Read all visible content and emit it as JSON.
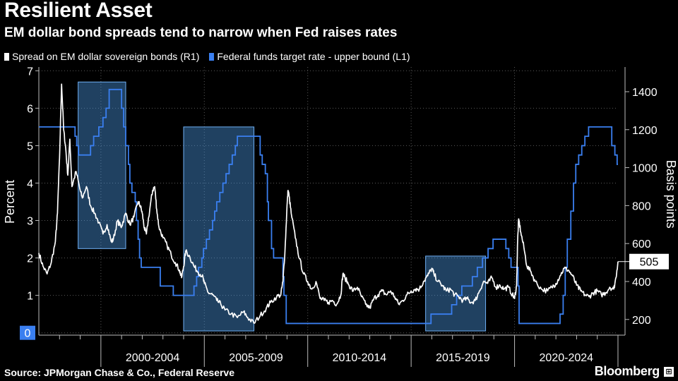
{
  "chart_data": {
    "type": "line",
    "title": "Resilient Asset",
    "subtitle": "EM dollar bond spreads tend to narrow when Fed raises rates",
    "source": "Source: JPMorgan Chase & Co., Federal Reserve",
    "brand": "Bloomberg",
    "xlim": [
      1997.0,
      2025.0
    ],
    "x_ticks": [
      "2000-2004",
      "2005-2009",
      "2010-2014",
      "2015-2019",
      "2020-2024"
    ],
    "left_axis": {
      "label": "Percent",
      "ylim": [
        -0.1,
        7.1
      ],
      "ticks": [
        "0",
        "1",
        "2",
        "3",
        "4",
        "5",
        "6",
        "7"
      ]
    },
    "right_axis": {
      "label": "Basis points",
      "ylim": [
        110,
        1530
      ],
      "ticks": [
        "200",
        "400",
        "600",
        "800",
        "1000",
        "1200",
        "1400"
      ]
    },
    "grid": true,
    "legend_position": "top-left",
    "colors": {
      "spread": "#ffffff",
      "fed": "#3a7ff0",
      "highlight": "#4c9ae8"
    },
    "series": [
      {
        "name": "Spread on EM dollar sovereign bonds (R1)",
        "axis": "right",
        "last_value_label": "505",
        "points": [
          [
            1997.0,
            550
          ],
          [
            1997.2,
            480
          ],
          [
            1997.4,
            440
          ],
          [
            1997.6,
            500
          ],
          [
            1997.8,
            610
          ],
          [
            1997.9,
            760
          ],
          [
            1998.0,
            1050
          ],
          [
            1998.1,
            1440
          ],
          [
            1998.2,
            1200
          ],
          [
            1998.3,
            1100
          ],
          [
            1998.4,
            960
          ],
          [
            1998.5,
            1150
          ],
          [
            1998.6,
            900
          ],
          [
            1998.8,
            980
          ],
          [
            1999.0,
            880
          ],
          [
            1999.1,
            840
          ],
          [
            1999.3,
            900
          ],
          [
            1999.5,
            800
          ],
          [
            1999.7,
            760
          ],
          [
            1999.9,
            710
          ],
          [
            2000.1,
            650
          ],
          [
            2000.3,
            700
          ],
          [
            2000.5,
            610
          ],
          [
            2000.6,
            620
          ],
          [
            2000.8,
            720
          ],
          [
            2000.9,
            700
          ],
          [
            2001.0,
            690
          ],
          [
            2001.2,
            760
          ],
          [
            2001.4,
            700
          ],
          [
            2001.6,
            740
          ],
          [
            2001.8,
            820
          ],
          [
            2001.9,
            800
          ],
          [
            2002.0,
            760
          ],
          [
            2002.1,
            680
          ],
          [
            2002.2,
            650
          ],
          [
            2002.4,
            810
          ],
          [
            2002.5,
            880
          ],
          [
            2002.6,
            900
          ],
          [
            2002.7,
            780
          ],
          [
            2002.8,
            690
          ],
          [
            2003.0,
            630
          ],
          [
            2003.2,
            590
          ],
          [
            2003.4,
            540
          ],
          [
            2003.6,
            500
          ],
          [
            2003.8,
            460
          ],
          [
            2003.9,
            420
          ],
          [
            2004.0,
            480
          ],
          [
            2004.1,
            560
          ],
          [
            2004.3,
            530
          ],
          [
            2004.5,
            480
          ],
          [
            2004.7,
            450
          ],
          [
            2004.9,
            430
          ],
          [
            2005.0,
            390
          ],
          [
            2005.2,
            340
          ],
          [
            2005.4,
            330
          ],
          [
            2005.6,
            300
          ],
          [
            2005.8,
            280
          ],
          [
            2006.0,
            250
          ],
          [
            2006.3,
            230
          ],
          [
            2006.6,
            210
          ],
          [
            2006.9,
            240
          ],
          [
            2007.1,
            210
          ],
          [
            2007.4,
            180
          ],
          [
            2007.7,
            220
          ],
          [
            2008.0,
            260
          ],
          [
            2008.2,
            290
          ],
          [
            2008.5,
            320
          ],
          [
            2008.7,
            330
          ],
          [
            2008.8,
            400
          ],
          [
            2008.9,
            560
          ],
          [
            2009.0,
            800
          ],
          [
            2009.05,
            880
          ],
          [
            2009.1,
            850
          ],
          [
            2009.2,
            760
          ],
          [
            2009.4,
            630
          ],
          [
            2009.6,
            520
          ],
          [
            2009.8,
            440
          ],
          [
            2010.0,
            400
          ],
          [
            2010.2,
            360
          ],
          [
            2010.4,
            400
          ],
          [
            2010.6,
            310
          ],
          [
            2010.8,
            300
          ],
          [
            2011.0,
            290
          ],
          [
            2011.2,
            300
          ],
          [
            2011.4,
            280
          ],
          [
            2011.6,
            330
          ],
          [
            2011.7,
            440
          ],
          [
            2011.8,
            420
          ],
          [
            2012.0,
            380
          ],
          [
            2012.2,
            350
          ],
          [
            2012.4,
            370
          ],
          [
            2012.6,
            320
          ],
          [
            2012.8,
            280
          ],
          [
            2013.0,
            260
          ],
          [
            2013.2,
            310
          ],
          [
            2013.4,
            330
          ],
          [
            2013.6,
            350
          ],
          [
            2013.8,
            330
          ],
          [
            2014.0,
            350
          ],
          [
            2014.2,
            320
          ],
          [
            2014.4,
            280
          ],
          [
            2014.6,
            300
          ],
          [
            2014.8,
            330
          ],
          [
            2015.0,
            350
          ],
          [
            2015.2,
            360
          ],
          [
            2015.4,
            360
          ],
          [
            2015.6,
            400
          ],
          [
            2015.8,
            430
          ],
          [
            2016.0,
            470
          ],
          [
            2016.1,
            440
          ],
          [
            2016.3,
            400
          ],
          [
            2016.5,
            380
          ],
          [
            2016.7,
            350
          ],
          [
            2016.9,
            360
          ],
          [
            2017.1,
            330
          ],
          [
            2017.3,
            320
          ],
          [
            2017.5,
            300
          ],
          [
            2017.7,
            310
          ],
          [
            2017.9,
            290
          ],
          [
            2018.1,
            300
          ],
          [
            2018.3,
            350
          ],
          [
            2018.5,
            400
          ],
          [
            2018.7,
            390
          ],
          [
            2018.9,
            420
          ],
          [
            2019.1,
            370
          ],
          [
            2019.3,
            380
          ],
          [
            2019.5,
            360
          ],
          [
            2019.7,
            370
          ],
          [
            2019.9,
            330
          ],
          [
            2020.0,
            310
          ],
          [
            2020.1,
            380
          ],
          [
            2020.15,
            620
          ],
          [
            2020.2,
            730
          ],
          [
            2020.3,
            660
          ],
          [
            2020.45,
            580
          ],
          [
            2020.6,
            480
          ],
          [
            2020.8,
            450
          ],
          [
            2021.0,
            400
          ],
          [
            2021.3,
            360
          ],
          [
            2021.6,
            350
          ],
          [
            2021.8,
            370
          ],
          [
            2022.0,
            390
          ],
          [
            2022.2,
            430
          ],
          [
            2022.4,
            470
          ],
          [
            2022.6,
            460
          ],
          [
            2022.8,
            430
          ],
          [
            2023.0,
            380
          ],
          [
            2023.2,
            350
          ],
          [
            2023.4,
            330
          ],
          [
            2023.6,
            320
          ],
          [
            2023.8,
            340
          ],
          [
            2024.0,
            350
          ],
          [
            2024.2,
            330
          ],
          [
            2024.4,
            340
          ],
          [
            2024.6,
            370
          ],
          [
            2024.8,
            360
          ],
          [
            2024.9,
            420
          ],
          [
            2025.0,
            505
          ]
        ]
      },
      {
        "name": "Federal funds target rate - upper bound  (L1)",
        "axis": "left",
        "points": [
          [
            1997.0,
            5.5
          ],
          [
            1998.75,
            5.25
          ],
          [
            1998.83,
            5.0
          ],
          [
            1998.92,
            4.75
          ],
          [
            1999.5,
            5.0
          ],
          [
            1999.65,
            5.25
          ],
          [
            1999.9,
            5.5
          ],
          [
            2000.1,
            5.75
          ],
          [
            2000.25,
            6.0
          ],
          [
            2000.4,
            6.5
          ],
          [
            2001.0,
            6.0
          ],
          [
            2001.1,
            5.5
          ],
          [
            2001.2,
            5.0
          ],
          [
            2001.33,
            4.5
          ],
          [
            2001.4,
            4.0
          ],
          [
            2001.5,
            3.75
          ],
          [
            2001.66,
            3.5
          ],
          [
            2001.72,
            3.0
          ],
          [
            2001.8,
            2.5
          ],
          [
            2001.87,
            2.0
          ],
          [
            2001.95,
            1.75
          ],
          [
            2002.87,
            1.25
          ],
          [
            2003.5,
            1.0
          ],
          [
            2004.5,
            1.25
          ],
          [
            2004.63,
            1.5
          ],
          [
            2004.72,
            1.75
          ],
          [
            2004.88,
            2.0
          ],
          [
            2004.96,
            2.25
          ],
          [
            2005.1,
            2.5
          ],
          [
            2005.25,
            2.75
          ],
          [
            2005.4,
            3.0
          ],
          [
            2005.5,
            3.25
          ],
          [
            2005.6,
            3.5
          ],
          [
            2005.75,
            3.75
          ],
          [
            2005.9,
            4.0
          ],
          [
            2006.05,
            4.25
          ],
          [
            2006.2,
            4.5
          ],
          [
            2006.35,
            4.75
          ],
          [
            2006.5,
            5.0
          ],
          [
            2006.6,
            5.25
          ],
          [
            2007.7,
            4.75
          ],
          [
            2007.8,
            4.5
          ],
          [
            2007.95,
            4.25
          ],
          [
            2008.05,
            3.5
          ],
          [
            2008.1,
            3.0
          ],
          [
            2008.25,
            2.25
          ],
          [
            2008.35,
            2.0
          ],
          [
            2008.8,
            1.5
          ],
          [
            2008.85,
            1.0
          ],
          [
            2008.96,
            0.25
          ],
          [
            2015.96,
            0.5
          ],
          [
            2016.96,
            0.75
          ],
          [
            2017.2,
            1.0
          ],
          [
            2017.45,
            1.25
          ],
          [
            2017.96,
            1.5
          ],
          [
            2018.2,
            1.75
          ],
          [
            2018.45,
            2.0
          ],
          [
            2018.72,
            2.25
          ],
          [
            2018.96,
            2.5
          ],
          [
            2019.58,
            2.25
          ],
          [
            2019.72,
            2.0
          ],
          [
            2019.83,
            1.75
          ],
          [
            2020.17,
            1.25
          ],
          [
            2020.22,
            0.25
          ],
          [
            2022.2,
            0.5
          ],
          [
            2022.35,
            1.0
          ],
          [
            2022.45,
            1.75
          ],
          [
            2022.55,
            2.5
          ],
          [
            2022.72,
            3.25
          ],
          [
            2022.85,
            4.0
          ],
          [
            2022.96,
            4.5
          ],
          [
            2023.1,
            4.75
          ],
          [
            2023.25,
            5.0
          ],
          [
            2023.4,
            5.25
          ],
          [
            2023.58,
            5.5
          ],
          [
            2024.7,
            5.0
          ],
          [
            2024.85,
            4.75
          ],
          [
            2024.96,
            4.5
          ],
          [
            2025.0,
            4.5
          ]
        ]
      }
    ],
    "highlights": [
      {
        "start": 1998.9,
        "end": 2001.2,
        "top": 6.7,
        "bottom": 2.25
      },
      {
        "start": 2004.0,
        "end": 2007.4,
        "top": 5.5,
        "bottom": 0.05
      },
      {
        "start": 2015.7,
        "end": 2018.6,
        "top": 2.05,
        "bottom": 0.05
      }
    ],
    "left_badge": "0"
  }
}
